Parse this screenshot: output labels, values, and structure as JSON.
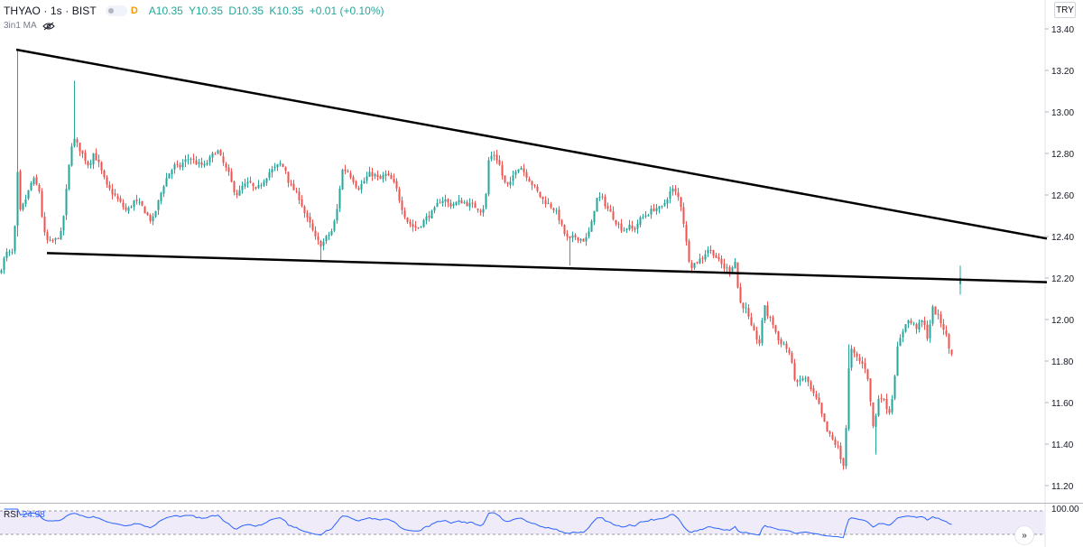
{
  "header": {
    "symbol": "THYAO · 1s · BIST",
    "interval_badge": "D",
    "ohlc": {
      "open": "A10.35",
      "high": "Y10.35",
      "low": "D10.35",
      "close": "K10.35",
      "change": "+0.01 (+0.10%)"
    },
    "indicator_label": "3in1 MA",
    "currency": "TRY"
  },
  "colors": {
    "up": "#26a69a",
    "down": "#ef5350",
    "trendline": "#000000",
    "rsi_line": "#2962ff",
    "rsi_band": "#7e57c2",
    "grid": "#f0f3fa",
    "axis_text": "#131722"
  },
  "chart_data": [
    {
      "type": "candlestick",
      "title": "THYAO · 1s · BIST",
      "y_axis_ticks": [
        "13.40",
        "13.20",
        "13.00",
        "12.80",
        "12.60",
        "12.40",
        "12.20",
        "12.00",
        "11.80",
        "11.60",
        "11.40",
        "11.20"
      ],
      "ylim": [
        11.13,
        13.46
      ],
      "price_scale_side": "right",
      "grid": false,
      "control_points": [
        [
          0,
          12.22
        ],
        [
          4,
          12.26
        ],
        [
          8,
          12.32
        ],
        [
          16,
          12.32
        ],
        [
          19,
          12.5
        ],
        [
          20,
          12.9
        ],
        [
          22,
          12.5
        ],
        [
          30,
          12.58
        ],
        [
          38,
          12.68
        ],
        [
          45,
          12.62
        ],
        [
          50,
          12.42
        ],
        [
          55,
          12.37
        ],
        [
          62,
          12.38
        ],
        [
          70,
          12.42
        ],
        [
          78,
          12.74
        ],
        [
          82,
          12.88
        ],
        [
          90,
          12.82
        ],
        [
          95,
          12.78
        ],
        [
          100,
          12.74
        ],
        [
          105,
          12.8
        ],
        [
          110,
          12.76
        ],
        [
          115,
          12.7
        ],
        [
          120,
          12.64
        ],
        [
          128,
          12.6
        ],
        [
          135,
          12.56
        ],
        [
          142,
          12.52
        ],
        [
          150,
          12.57
        ],
        [
          158,
          12.55
        ],
        [
          165,
          12.5
        ],
        [
          170,
          12.47
        ],
        [
          178,
          12.58
        ],
        [
          182,
          12.64
        ],
        [
          188,
          12.7
        ],
        [
          195,
          12.74
        ],
        [
          200,
          12.73
        ],
        [
          205,
          12.76
        ],
        [
          212,
          12.78
        ],
        [
          220,
          12.75
        ],
        [
          228,
          12.74
        ],
        [
          235,
          12.78
        ],
        [
          242,
          12.82
        ],
        [
          248,
          12.76
        ],
        [
          255,
          12.7
        ],
        [
          260,
          12.63
        ],
        [
          265,
          12.6
        ],
        [
          270,
          12.64
        ],
        [
          278,
          12.66
        ],
        [
          285,
          12.62
        ],
        [
          292,
          12.66
        ],
        [
          300,
          12.71
        ],
        [
          306,
          12.73
        ],
        [
          312,
          12.75
        ],
        [
          318,
          12.72
        ],
        [
          322,
          12.65
        ],
        [
          328,
          12.62
        ],
        [
          334,
          12.58
        ],
        [
          340,
          12.5
        ],
        [
          346,
          12.45
        ],
        [
          352,
          12.38
        ],
        [
          358,
          12.36
        ],
        [
          364,
          12.4
        ],
        [
          370,
          12.43
        ],
        [
          376,
          12.55
        ],
        [
          380,
          12.72
        ],
        [
          386,
          12.72
        ],
        [
          392,
          12.68
        ],
        [
          398,
          12.63
        ],
        [
          404,
          12.66
        ],
        [
          410,
          12.7
        ],
        [
          416,
          12.7
        ],
        [
          422,
          12.67
        ],
        [
          428,
          12.7
        ],
        [
          434,
          12.68
        ],
        [
          440,
          12.64
        ],
        [
          446,
          12.55
        ],
        [
          452,
          12.48
        ],
        [
          458,
          12.45
        ],
        [
          464,
          12.44
        ],
        [
          470,
          12.47
        ],
        [
          476,
          12.5
        ],
        [
          482,
          12.52
        ],
        [
          488,
          12.57
        ],
        [
          494,
          12.58
        ],
        [
          500,
          12.55
        ],
        [
          506,
          12.56
        ],
        [
          512,
          12.57
        ],
        [
          518,
          12.56
        ],
        [
          524,
          12.55
        ],
        [
          530,
          12.54
        ],
        [
          536,
          12.52
        ],
        [
          540,
          12.6
        ],
        [
          542,
          12.76
        ],
        [
          548,
          12.8
        ],
        [
          554,
          12.76
        ],
        [
          560,
          12.66
        ],
        [
          566,
          12.64
        ],
        [
          572,
          12.72
        ],
        [
          578,
          12.74
        ],
        [
          584,
          12.7
        ],
        [
          590,
          12.66
        ],
        [
          596,
          12.62
        ],
        [
          602,
          12.58
        ],
        [
          608,
          12.56
        ],
        [
          614,
          12.54
        ],
        [
          620,
          12.5
        ],
        [
          626,
          12.42
        ],
        [
          632,
          12.38
        ],
        [
          638,
          12.4
        ],
        [
          644,
          12.39
        ],
        [
          650,
          12.38
        ],
        [
          656,
          12.44
        ],
        [
          662,
          12.58
        ],
        [
          668,
          12.59
        ],
        [
          674,
          12.54
        ],
        [
          680,
          12.5
        ],
        [
          686,
          12.46
        ],
        [
          692,
          12.43
        ],
        [
          698,
          12.45
        ],
        [
          704,
          12.43
        ],
        [
          710,
          12.48
        ],
        [
          716,
          12.5
        ],
        [
          722,
          12.52
        ],
        [
          728,
          12.54
        ],
        [
          734,
          12.53
        ],
        [
          740,
          12.58
        ],
        [
          746,
          12.63
        ],
        [
          752,
          12.6
        ],
        [
          756,
          12.55
        ],
        [
          760,
          12.44
        ],
        [
          764,
          12.3
        ],
        [
          768,
          12.26
        ],
        [
          774,
          12.28
        ],
        [
          780,
          12.3
        ],
        [
          786,
          12.34
        ],
        [
          792,
          12.32
        ],
        [
          798,
          12.28
        ],
        [
          804,
          12.25
        ],
        [
          810,
          12.24
        ],
        [
          816,
          12.28
        ],
        [
          818,
          12.18
        ],
        [
          822,
          12.08
        ],
        [
          828,
          12.05
        ],
        [
          834,
          11.96
        ],
        [
          840,
          11.91
        ],
        [
          844,
          11.88
        ],
        [
          848,
          12.09
        ],
        [
          852,
          12.02
        ],
        [
          858,
          11.98
        ],
        [
          864,
          11.9
        ],
        [
          870,
          11.88
        ],
        [
          876,
          11.84
        ],
        [
          880,
          11.76
        ],
        [
          884,
          11.68
        ],
        [
          890,
          11.72
        ],
        [
          896,
          11.71
        ],
        [
          900,
          11.66
        ],
        [
          904,
          11.63
        ],
        [
          908,
          11.6
        ],
        [
          912,
          11.54
        ],
        [
          918,
          11.46
        ],
        [
          924,
          11.42
        ],
        [
          930,
          11.38
        ],
        [
          934,
          11.31
        ],
        [
          938,
          11.3
        ],
        [
          940,
          11.66
        ],
        [
          944,
          11.86
        ],
        [
          948,
          11.83
        ],
        [
          954,
          11.8
        ],
        [
          958,
          11.78
        ],
        [
          962,
          11.76
        ],
        [
          966,
          11.6
        ],
        [
          970,
          11.45
        ],
        [
          974,
          11.62
        ],
        [
          978,
          11.63
        ],
        [
          984,
          11.58
        ],
        [
          988,
          11.55
        ],
        [
          992,
          11.7
        ],
        [
          996,
          11.86
        ],
        [
          1000,
          11.92
        ],
        [
          1006,
          12.0
        ],
        [
          1012,
          11.98
        ],
        [
          1018,
          11.96
        ],
        [
          1024,
          12.0
        ],
        [
          1030,
          11.9
        ],
        [
          1034,
          12.06
        ],
        [
          1040,
          12.02
        ],
        [
          1046,
          11.97
        ],
        [
          1050,
          11.92
        ],
        [
          1054,
          11.84
        ]
      ],
      "last_candle": {
        "x": 1064,
        "open": 12.17,
        "high": 12.26,
        "low": 12.12,
        "close": 12.2
      },
      "trendlines": [
        {
          "name": "upper",
          "from": [
            18,
            13.3
          ],
          "to": [
            1160,
            12.39
          ]
        },
        {
          "name": "lower",
          "from": [
            52,
            12.32
          ],
          "to": [
            1160,
            12.18
          ]
        }
      ]
    },
    {
      "type": "line",
      "title": "RSI",
      "value_label": "24.98",
      "y_axis_ticks": [
        "100.00"
      ],
      "ylim": [
        0,
        100
      ],
      "band": [
        30,
        70
      ],
      "note": "RSI series rendered from candle closes"
    }
  ],
  "rsi": {
    "label": "RSI",
    "value": "24.98"
  },
  "controls": {
    "scroll_to_end": "»"
  }
}
